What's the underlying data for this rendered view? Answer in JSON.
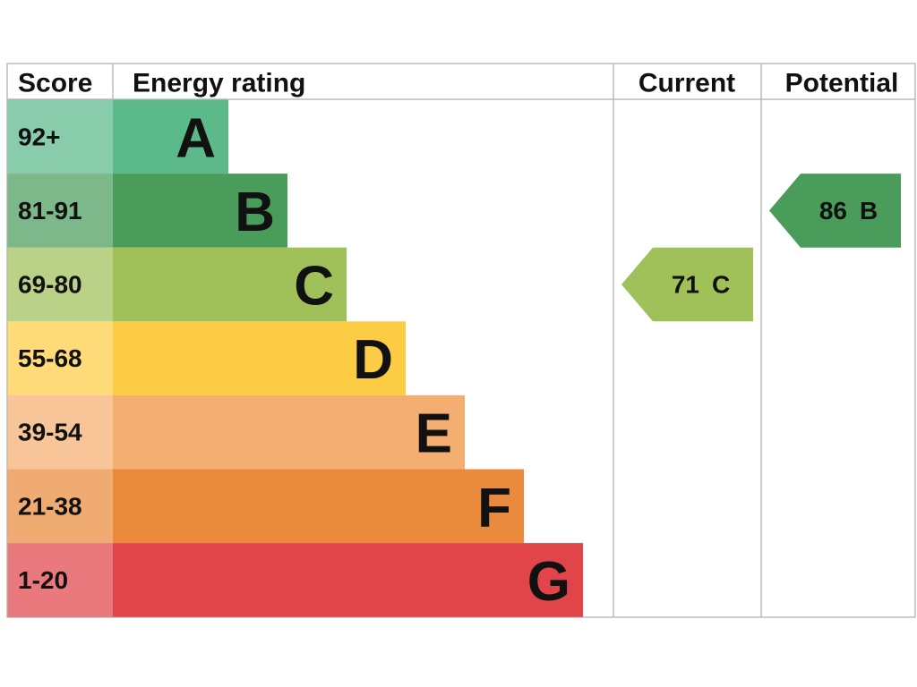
{
  "header": {
    "score": "Score",
    "rating": "Energy rating",
    "current": "Current",
    "potential": "Potential"
  },
  "bands": [
    {
      "score": "92+",
      "letter": "A",
      "color": "#5cb98a"
    },
    {
      "score": "81-91",
      "letter": "B",
      "color": "#4a9c5b"
    },
    {
      "score": "69-80",
      "letter": "C",
      "color": "#a0c15a"
    },
    {
      "score": "55-68",
      "letter": "D",
      "color": "#fdcc45"
    },
    {
      "score": "39-54",
      "letter": "E",
      "color": "#f5ae72"
    },
    {
      "score": "21-38",
      "letter": "F",
      "color": "#e98a3c"
    },
    {
      "score": "1-20",
      "letter": "G",
      "color": "#e1454a"
    }
  ],
  "current": {
    "value": 71,
    "letter": "C"
  },
  "potential": {
    "value": 86,
    "letter": "B"
  }
}
